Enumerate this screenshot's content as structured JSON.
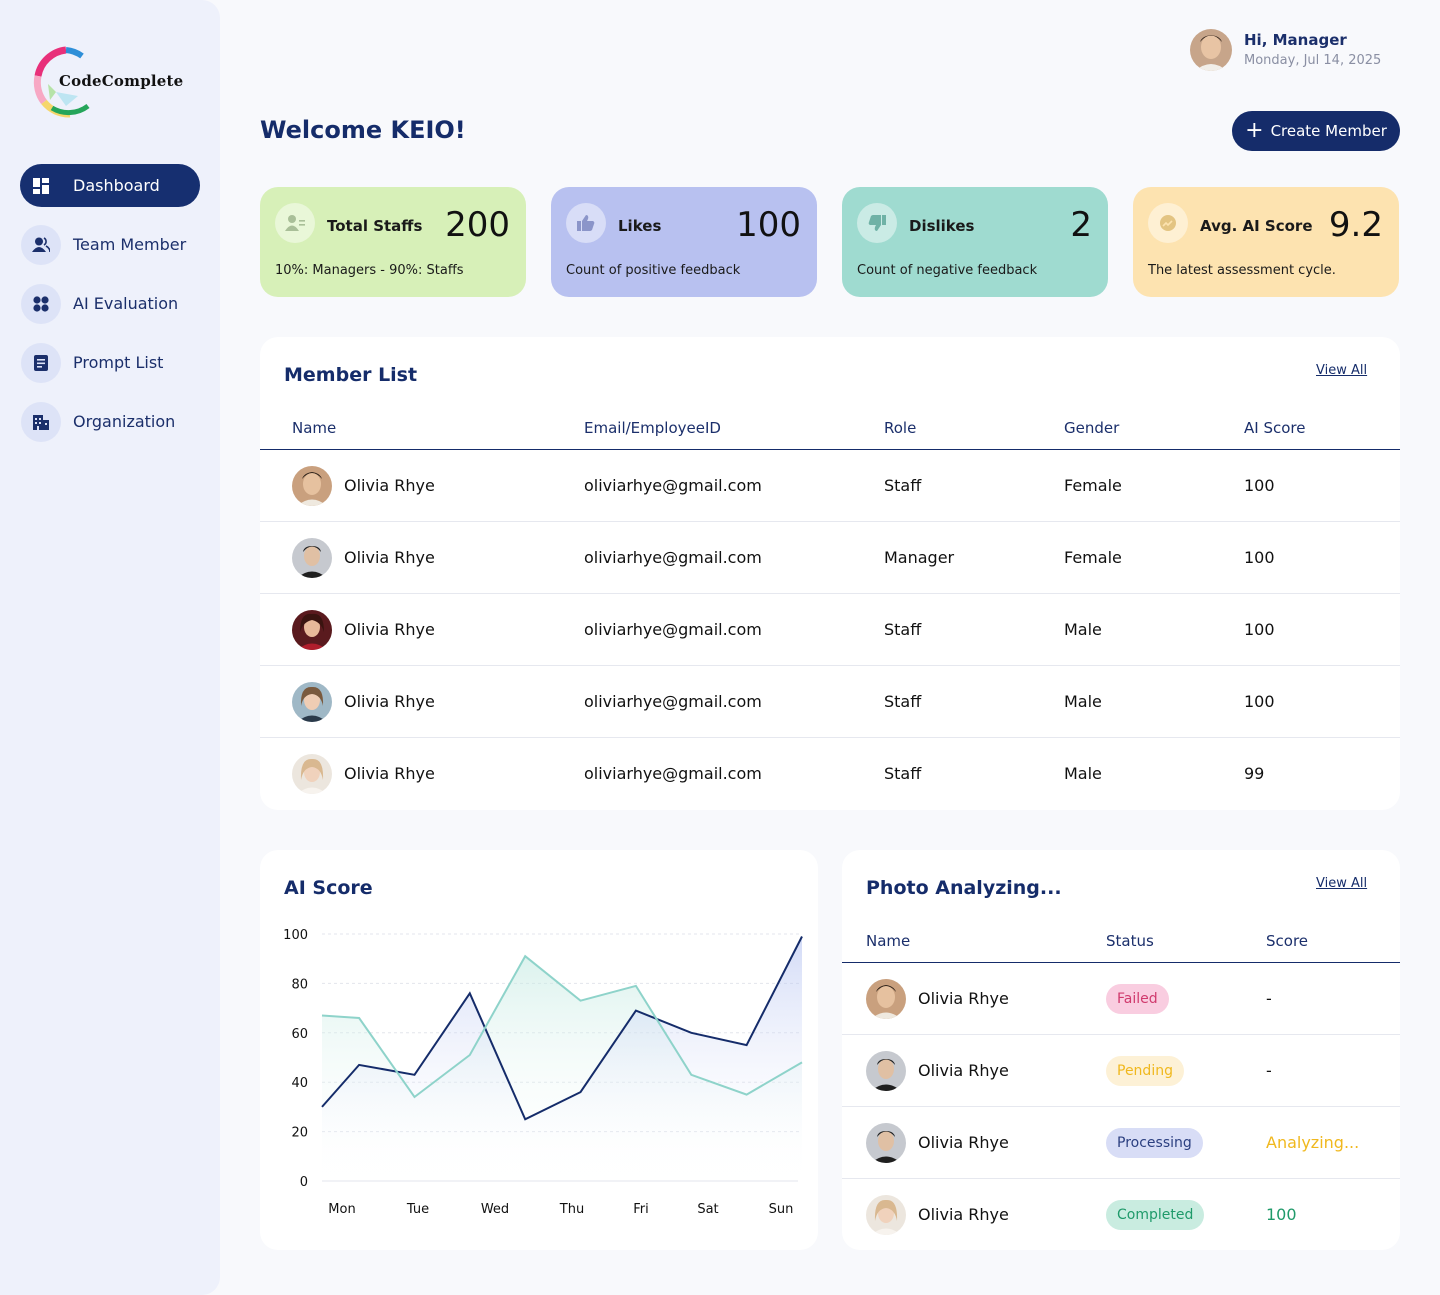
{
  "brand": {
    "name": "CodeComplete"
  },
  "sidebar": {
    "items": [
      {
        "label": "Dashboard",
        "icon": "dashboard-icon",
        "active": true
      },
      {
        "label": "Team Member",
        "icon": "team-icon",
        "active": false
      },
      {
        "label": "AI Evaluation",
        "icon": "grid-dots-icon",
        "active": false
      },
      {
        "label": "Prompt List",
        "icon": "document-icon",
        "active": false
      },
      {
        "label": "Organization",
        "icon": "building-icon",
        "active": false
      }
    ]
  },
  "user": {
    "greeting": "Hi, Manager",
    "date": "Monday, Jul 14, 2025"
  },
  "header": {
    "welcome": "Welcome KEIO!",
    "create_button": "Create Member"
  },
  "stats": [
    {
      "title": "Total Staffs",
      "value": "200",
      "subtitle": "10%: Managers - 90%: Staffs",
      "icon": "staff-icon",
      "bg": "#d7f0b8"
    },
    {
      "title": "Likes",
      "value": "100",
      "subtitle": "Count of positive feedback",
      "icon": "thumbs-up-icon",
      "bg": "#b8c1f0"
    },
    {
      "title": "Dislikes",
      "value": "2",
      "subtitle": "Count of negative feedback",
      "icon": "thumbs-down-icon",
      "bg": "#9fdbd0"
    },
    {
      "title": "Avg. AI Score",
      "value": "9.2",
      "subtitle": "The latest assessment cycle.",
      "icon": "trend-icon",
      "bg": "#fde3b0"
    }
  ],
  "member_list": {
    "title": "Member List",
    "view_all": "View All",
    "columns": [
      "Name",
      "Email/EmployeeID",
      "Role",
      "Gender",
      "AI Score"
    ],
    "rows": [
      {
        "name": "Olivia Rhye",
        "email": "oliviarhye@gmail.com",
        "role": "Staff",
        "gender": "Female",
        "score": "100"
      },
      {
        "name": "Olivia Rhye",
        "email": "oliviarhye@gmail.com",
        "role": "Manager",
        "gender": "Female",
        "score": "100"
      },
      {
        "name": "Olivia Rhye",
        "email": "oliviarhye@gmail.com",
        "role": "Staff",
        "gender": "Male",
        "score": "100"
      },
      {
        "name": "Olivia Rhye",
        "email": "oliviarhye@gmail.com",
        "role": "Staff",
        "gender": "Male",
        "score": "100"
      },
      {
        "name": "Olivia Rhye",
        "email": "oliviarhye@gmail.com",
        "role": "Staff",
        "gender": "Male",
        "score": "99"
      }
    ]
  },
  "ai_score_panel": {
    "title": "AI Score"
  },
  "chart_data": {
    "type": "area",
    "title": "AI Score",
    "xlabel": "",
    "ylabel": "",
    "categories": [
      "Mon",
      "Tue",
      "Wed",
      "Thu",
      "Fri",
      "Sat",
      "Sun"
    ],
    "x": [
      0,
      0.67,
      1.67,
      2.67,
      3.67,
      4.67,
      5.67,
      6.67,
      7.67,
      8.67
    ],
    "series": [
      {
        "values": [
          30,
          47,
          43,
          76,
          25,
          36,
          69,
          60,
          55,
          99
        ],
        "color": "#152c6a"
      },
      {
        "values": [
          67,
          66,
          34,
          51,
          91,
          73,
          79,
          43,
          35,
          48
        ],
        "color": "#8ed3ca"
      }
    ],
    "yticks": [
      0,
      20,
      40,
      60,
      80,
      100
    ],
    "ylim": [
      0,
      100
    ],
    "grid": true
  },
  "photo_panel": {
    "title": "Photo Analyzing...",
    "view_all": "View All",
    "columns": [
      "Name",
      "Status",
      "Score"
    ],
    "rows": [
      {
        "name": "Olivia Rhye",
        "status": "Failed",
        "score": "-",
        "status_bg": "#f9cde0",
        "status_fg": "#d03a6d",
        "score_fg": "#111111"
      },
      {
        "name": "Olivia Rhye",
        "status": "Pending",
        "score": "-",
        "status_bg": "#fdf1d6",
        "status_fg": "#f0b81e",
        "score_fg": "#111111"
      },
      {
        "name": "Olivia Rhye",
        "status": "Processing",
        "score": "Analyzing...",
        "status_bg": "#d8ddf6",
        "status_fg": "#2b3f80",
        "score_fg": "#f0b81e"
      },
      {
        "name": "Olivia Rhye",
        "status": "Completed",
        "score": "100",
        "status_bg": "#c9ece0",
        "status_fg": "#1f9a6a",
        "score_fg": "#1f9a6a"
      }
    ]
  },
  "colors": {
    "primary": "#152c6a",
    "sidebar_bg": "#eef1fb",
    "page_bg": "#f8f9fc"
  }
}
